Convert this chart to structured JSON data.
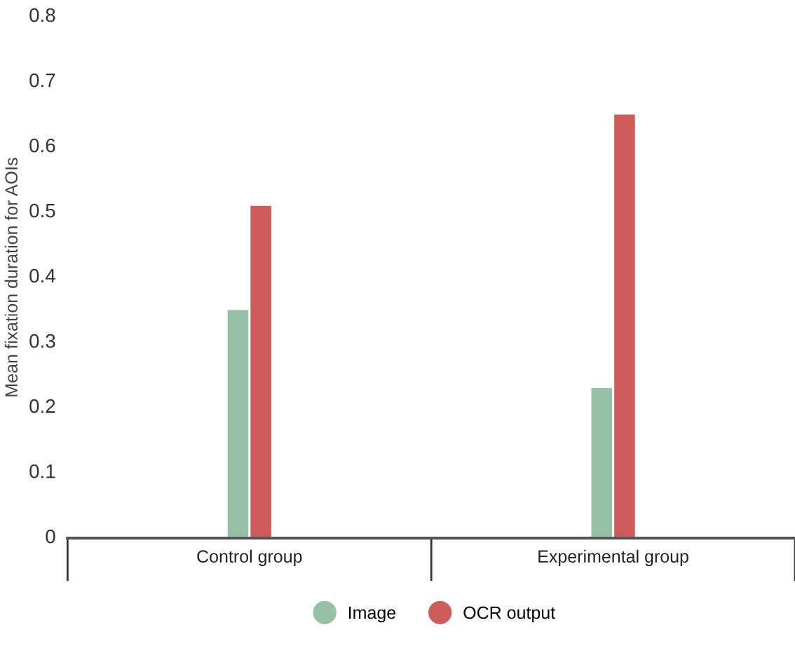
{
  "chart_data": {
    "type": "bar",
    "ylabel": "Mean fixation duration for AOIs",
    "categories": [
      "Control group",
      "Experimental group"
    ],
    "series": [
      {
        "name": "Image",
        "color": "#96c1a7",
        "values": [
          0.35,
          0.23
        ]
      },
      {
        "name": "OCR output",
        "color": "#cd5c5a",
        "values": [
          0.51,
          0.65
        ]
      }
    ],
    "ylim": [
      0,
      0.8
    ],
    "yticks": [
      0,
      0.1,
      0.2,
      0.3,
      0.4,
      0.5,
      0.6,
      0.7,
      0.8
    ],
    "grid": false,
    "legend": "bottom"
  }
}
